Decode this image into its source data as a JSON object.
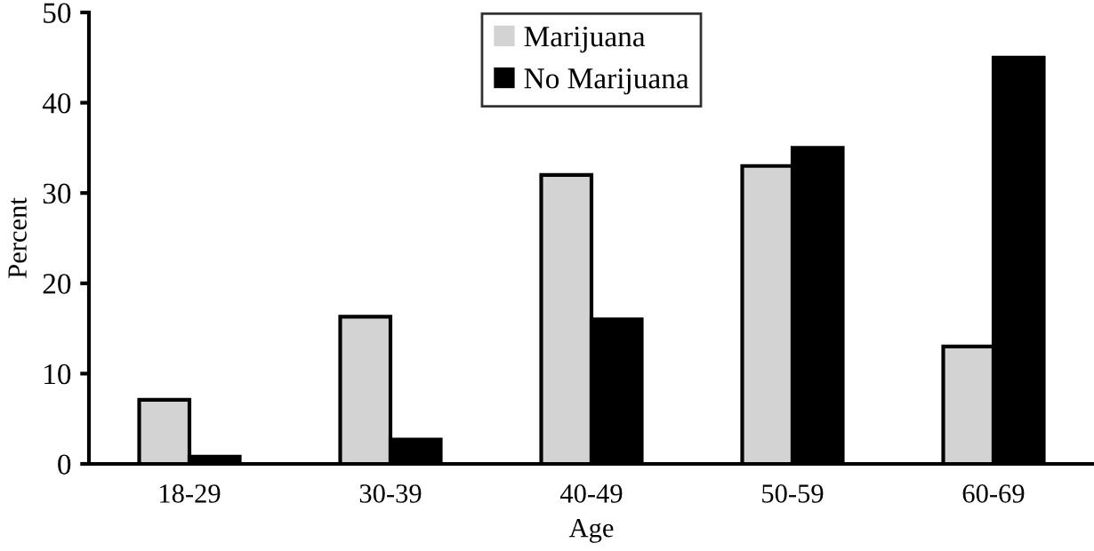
{
  "chart_data": {
    "type": "bar",
    "xlabel": "Age",
    "ylabel": "Percent",
    "categories": [
      "18-29",
      "30-39",
      "40-49",
      "50-59",
      "60-69"
    ],
    "series": [
      {
        "name": "Marijuana",
        "color": "#d3d3d3",
        "values": [
          7.1,
          16.3,
          32,
          33,
          13
        ]
      },
      {
        "name": "No Marijuana",
        "color": "#000000",
        "values": [
          0.8,
          2.7,
          16,
          35,
          45
        ]
      }
    ],
    "ylim": [
      0,
      50
    ],
    "yticks": [
      0,
      10,
      20,
      30,
      40,
      50
    ],
    "grid": false,
    "legend": "top"
  }
}
